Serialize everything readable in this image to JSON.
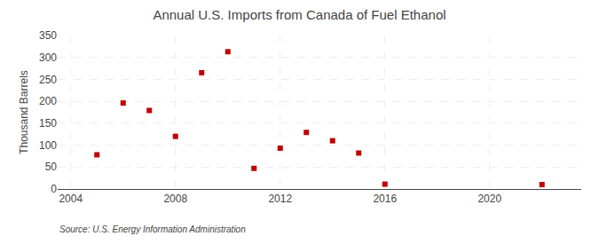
{
  "chart_data": {
    "type": "scatter",
    "title": "Annual U.S. Imports from Canada of Fuel Ethanol",
    "ylabel": "Thousand Barrels",
    "annotations": [
      "Source: U.S. Energy Information Administration"
    ],
    "x": [
      2005,
      2006,
      2007,
      2008,
      2009,
      2010,
      2011,
      2012,
      2013,
      2014,
      2015,
      2016,
      2022
    ],
    "values": [
      78,
      196,
      179,
      120,
      265,
      313,
      47,
      93,
      129,
      110,
      82,
      11,
      10
    ],
    "color": "#c00000",
    "marker": "square",
    "xlim": [
      2003.5,
      2023.5
    ],
    "ylim": [
      0,
      350
    ],
    "xticks": [
      2004,
      2008,
      2012,
      2016,
      2020
    ],
    "yticks": [
      0,
      50,
      100,
      150,
      200,
      250,
      300,
      350
    ],
    "grid": true
  }
}
